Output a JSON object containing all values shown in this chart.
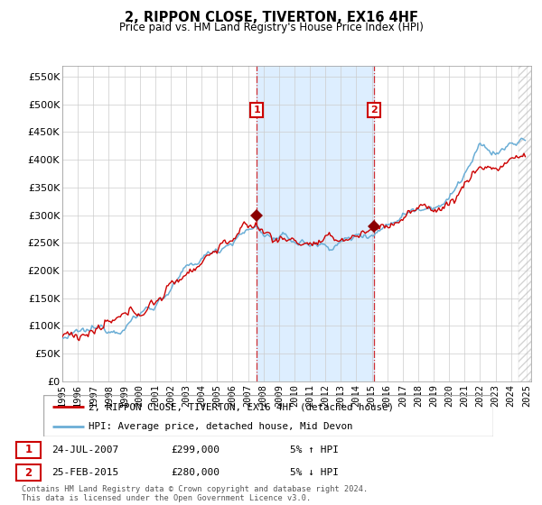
{
  "title": "2, RIPPON CLOSE, TIVERTON, EX16 4HF",
  "subtitle": "Price paid vs. HM Land Registry's House Price Index (HPI)",
  "ylabel_ticks": [
    "£0",
    "£50K",
    "£100K",
    "£150K",
    "£200K",
    "£250K",
    "£300K",
    "£350K",
    "£400K",
    "£450K",
    "£500K",
    "£550K"
  ],
  "ytick_values": [
    0,
    50000,
    100000,
    150000,
    200000,
    250000,
    300000,
    350000,
    400000,
    450000,
    500000,
    550000
  ],
  "ylim": [
    0,
    570000
  ],
  "sale1_price": 299000,
  "sale1_year": 2007.56,
  "sale2_price": 280000,
  "sale2_year": 2015.15,
  "legend_line1": "2, RIPPON CLOSE, TIVERTON, EX16 4HF (detached house)",
  "legend_line2": "HPI: Average price, detached house, Mid Devon",
  "annotation1_text": "24-JUL-2007",
  "annotation1_price": "£299,000",
  "annotation1_pct": "5% ↑ HPI",
  "annotation2_text": "25-FEB-2015",
  "annotation2_price": "£280,000",
  "annotation2_pct": "5% ↓ HPI",
  "footer": "Contains HM Land Registry data © Crown copyright and database right 2024.\nThis data is licensed under the Open Government Licence v3.0.",
  "hpi_color": "#6baed6",
  "sale_color": "#cc0000",
  "shade_color": "#ddeeff",
  "background_color": "#ffffff",
  "grid_color": "#cccccc",
  "label_box_color": "#cc0000"
}
